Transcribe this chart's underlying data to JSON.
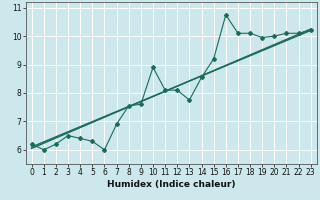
{
  "xlabel": "Humidex (Indice chaleur)",
  "bg_color": "#cce8ec",
  "grid_color": "#ffffff",
  "line_color": "#1a6b5a",
  "xlim": [
    -0.5,
    23.5
  ],
  "ylim": [
    5.5,
    11.2
  ],
  "xticks": [
    0,
    1,
    2,
    3,
    4,
    5,
    6,
    7,
    8,
    9,
    10,
    11,
    12,
    13,
    14,
    15,
    16,
    17,
    18,
    19,
    20,
    21,
    22,
    23
  ],
  "yticks": [
    6,
    7,
    8,
    9,
    10,
    11
  ],
  "scatter_x": [
    0,
    1,
    2,
    3,
    4,
    5,
    6,
    7,
    8,
    9,
    10,
    11,
    12,
    13,
    14,
    15,
    16,
    17,
    18,
    19,
    20,
    21,
    22,
    23
  ],
  "scatter_y": [
    6.2,
    6.0,
    6.2,
    6.5,
    6.4,
    6.3,
    6.0,
    6.9,
    7.55,
    7.6,
    8.9,
    8.1,
    8.1,
    7.75,
    8.55,
    9.2,
    10.75,
    10.1,
    10.1,
    9.95,
    10.0,
    10.1,
    10.1,
    10.2
  ],
  "line1_x": [
    0,
    23
  ],
  "line1_y": [
    6.05,
    10.25
  ],
  "line2_x": [
    0,
    23
  ],
  "line2_y": [
    6.1,
    10.2
  ]
}
